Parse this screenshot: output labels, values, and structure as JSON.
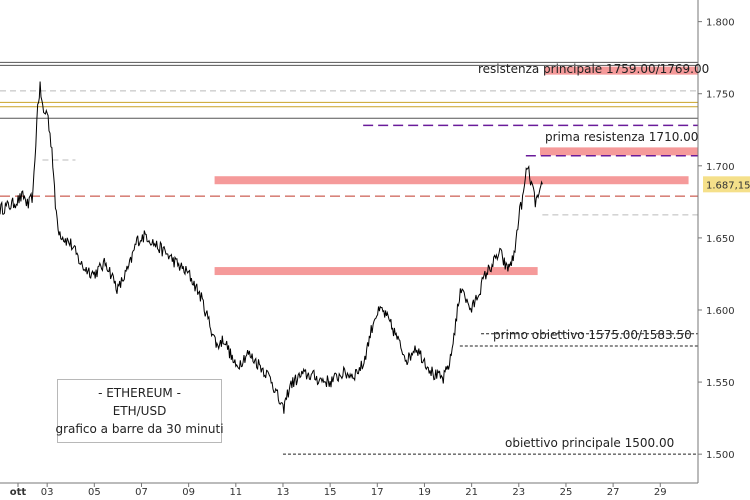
{
  "chart_data": {
    "type": "bar",
    "subtype": "ohlc-price",
    "instrument": {
      "line1": "- ETHEREUM -",
      "line2": "ETH/USD",
      "line3": "grafico a barre da 30 minuti"
    },
    "x_ticks": [
      "ott",
      "03",
      "05",
      "07",
      "09",
      "11",
      "13",
      "15",
      "17",
      "19",
      "21",
      "23",
      "25",
      "27",
      "29"
    ],
    "y_ticks": [
      "1.500",
      "1.550",
      "1.600",
      "1.650",
      "1.700",
      "1.750",
      "1.800"
    ],
    "y_tick_values": [
      1500,
      1550,
      1600,
      1650,
      1700,
      1750,
      1800
    ],
    "ylim": [
      1480,
      1815
    ],
    "xlim_days": [
      1,
      30.6
    ],
    "last_price": {
      "label": "1.687,15",
      "value": 1687.15,
      "color": "#f5e08a"
    },
    "colors": {
      "price": "#000000",
      "zone": "#f59a9a",
      "resistance_line": "#555555",
      "gold_line": "#c9a227",
      "red_dash": "#c0392b",
      "purple_dash": "#6a1b9a",
      "light_dash": "#bbbbbb",
      "target_dash": "#222222"
    },
    "annotations": {
      "res_main": "resistenza principale 1759.00/1769.00",
      "res_first": "prima resistenza 1710.00",
      "target_first": "primo obiettivo 1575.00/1583.50",
      "target_main": "obiettivo principale 1500.00"
    },
    "levels": {
      "res_main": [
        1759,
        1769
      ],
      "res_first": 1710,
      "target_first": [
        1575,
        1583.5
      ],
      "target_main": 1500
    },
    "zones": [
      {
        "day": [
          10.1,
          30.2
        ],
        "price": 1690
      },
      {
        "day": [
          10.1,
          23.8
        ],
        "price": 1627
      },
      {
        "day": [
          23.9,
          30.6
        ],
        "price": 1710
      },
      {
        "day": [
          24.1,
          30.6
        ],
        "price": 1766
      }
    ],
    "series": [
      {
        "values": [
          [
            1.0,
            1670
          ],
          [
            1.5,
            1673
          ],
          [
            2.0,
            1679
          ],
          [
            2.2,
            1672
          ],
          [
            2.4,
            1680
          ],
          [
            2.6,
            1742
          ],
          [
            2.7,
            1754
          ],
          [
            2.85,
            1736
          ],
          [
            3.0,
            1738
          ],
          [
            3.2,
            1712
          ],
          [
            3.35,
            1672
          ],
          [
            3.5,
            1655
          ],
          [
            3.7,
            1650
          ],
          [
            4.0,
            1646
          ],
          [
            4.5,
            1630
          ],
          [
            5.0,
            1625
          ],
          [
            5.5,
            1633
          ],
          [
            6.0,
            1614
          ],
          [
            6.5,
            1631
          ],
          [
            6.8,
            1648
          ],
          [
            7.2,
            1652
          ],
          [
            7.6,
            1645
          ],
          [
            8.0,
            1640
          ],
          [
            8.5,
            1632
          ],
          [
            9.0,
            1625
          ],
          [
            9.5,
            1610
          ],
          [
            9.9,
            1590
          ],
          [
            10.2,
            1575
          ],
          [
            10.5,
            1580
          ],
          [
            11.0,
            1560
          ],
          [
            11.5,
            1570
          ],
          [
            12.0,
            1562
          ],
          [
            12.5,
            1552
          ],
          [
            13.0,
            1530
          ],
          [
            13.3,
            1548
          ],
          [
            13.8,
            1555
          ],
          [
            14.2,
            1555
          ],
          [
            14.5,
            1552
          ],
          [
            15.0,
            1550
          ],
          [
            15.5,
            1556
          ],
          [
            16.0,
            1555
          ],
          [
            16.4,
            1562
          ],
          [
            16.7,
            1583
          ],
          [
            16.9,
            1596
          ],
          [
            17.2,
            1600
          ],
          [
            17.5,
            1592
          ],
          [
            17.8,
            1582
          ],
          [
            18.0,
            1574
          ],
          [
            18.3,
            1565
          ],
          [
            18.6,
            1575
          ],
          [
            19.0,
            1565
          ],
          [
            19.4,
            1555
          ],
          [
            19.8,
            1552
          ],
          [
            20.1,
            1565
          ],
          [
            20.4,
            1600
          ],
          [
            20.6,
            1618
          ],
          [
            20.8,
            1605
          ],
          [
            21.0,
            1600
          ],
          [
            21.3,
            1612
          ],
          [
            21.6,
            1625
          ],
          [
            21.9,
            1632
          ],
          [
            22.2,
            1640
          ],
          [
            22.5,
            1628
          ],
          [
            22.8,
            1637
          ],
          [
            23.0,
            1665
          ],
          [
            23.2,
            1680
          ],
          [
            23.35,
            1700
          ],
          [
            23.5,
            1690
          ],
          [
            23.7,
            1675
          ],
          [
            23.9,
            1680
          ],
          [
            24.0,
            1687.15
          ]
        ]
      }
    ]
  }
}
